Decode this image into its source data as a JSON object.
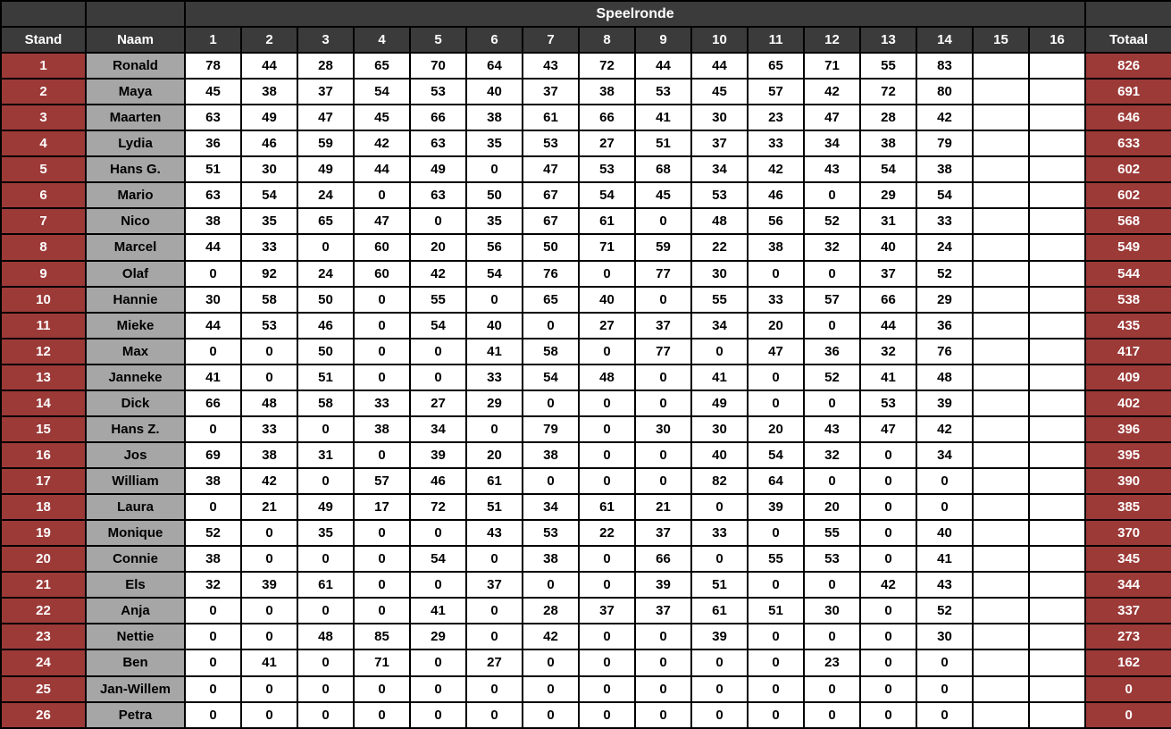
{
  "colors": {
    "header_bg": "#3B3B3B",
    "header_text": "#FFFFFF",
    "rank_bg": "#9C3A38",
    "rank_text": "#FFFFFF",
    "name_bg": "#A6A6A6",
    "name_text": "#000000",
    "cell_bg": "#FFFFFF",
    "cell_text": "#000000",
    "border": "#000000"
  },
  "chart_data": {
    "type": "table",
    "group_header": "Speelronde",
    "col_stand": "Stand",
    "col_naam": "Naam",
    "round_columns": [
      "1",
      "2",
      "3",
      "4",
      "5",
      "6",
      "7",
      "8",
      "9",
      "10",
      "11",
      "12",
      "13",
      "14",
      "15",
      "16"
    ],
    "col_totaal": "Totaal",
    "rows": [
      {
        "stand": "1",
        "naam": "Ronald",
        "scores": [
          78,
          44,
          28,
          65,
          70,
          64,
          43,
          72,
          44,
          44,
          65,
          71,
          55,
          83,
          "",
          ""
        ],
        "totaal": "826"
      },
      {
        "stand": "2",
        "naam": "Maya",
        "scores": [
          45,
          38,
          37,
          54,
          53,
          40,
          37,
          38,
          53,
          45,
          57,
          42,
          72,
          80,
          "",
          ""
        ],
        "totaal": "691"
      },
      {
        "stand": "3",
        "naam": "Maarten",
        "scores": [
          63,
          49,
          47,
          45,
          66,
          38,
          61,
          66,
          41,
          30,
          23,
          47,
          28,
          42,
          "",
          ""
        ],
        "totaal": "646"
      },
      {
        "stand": "4",
        "naam": "Lydia",
        "scores": [
          36,
          46,
          59,
          42,
          63,
          35,
          53,
          27,
          51,
          37,
          33,
          34,
          38,
          79,
          "",
          ""
        ],
        "totaal": "633"
      },
      {
        "stand": "5",
        "naam": "Hans G.",
        "scores": [
          51,
          30,
          49,
          44,
          49,
          0,
          47,
          53,
          68,
          34,
          42,
          43,
          54,
          38,
          "",
          ""
        ],
        "totaal": "602"
      },
      {
        "stand": "6",
        "naam": "Mario",
        "scores": [
          63,
          54,
          24,
          0,
          63,
          50,
          67,
          54,
          45,
          53,
          46,
          0,
          29,
          54,
          "",
          ""
        ],
        "totaal": "602"
      },
      {
        "stand": "7",
        "naam": "Nico",
        "scores": [
          38,
          35,
          65,
          47,
          0,
          35,
          67,
          61,
          0,
          48,
          56,
          52,
          31,
          33,
          "",
          ""
        ],
        "totaal": "568"
      },
      {
        "stand": "8",
        "naam": "Marcel",
        "scores": [
          44,
          33,
          0,
          60,
          20,
          56,
          50,
          71,
          59,
          22,
          38,
          32,
          40,
          24,
          "",
          ""
        ],
        "totaal": "549"
      },
      {
        "stand": "9",
        "naam": "Olaf",
        "scores": [
          0,
          92,
          24,
          60,
          42,
          54,
          76,
          0,
          77,
          30,
          0,
          0,
          37,
          52,
          "",
          ""
        ],
        "totaal": "544"
      },
      {
        "stand": "10",
        "naam": "Hannie",
        "scores": [
          30,
          58,
          50,
          0,
          55,
          0,
          65,
          40,
          0,
          55,
          33,
          57,
          66,
          29,
          "",
          ""
        ],
        "totaal": "538"
      },
      {
        "stand": "11",
        "naam": "Mieke",
        "scores": [
          44,
          53,
          46,
          0,
          54,
          40,
          0,
          27,
          37,
          34,
          20,
          0,
          44,
          36,
          "",
          ""
        ],
        "totaal": "435"
      },
      {
        "stand": "12",
        "naam": "Max",
        "scores": [
          0,
          0,
          50,
          0,
          0,
          41,
          58,
          0,
          77,
          0,
          47,
          36,
          32,
          76,
          "",
          ""
        ],
        "totaal": "417"
      },
      {
        "stand": "13",
        "naam": "Janneke",
        "scores": [
          41,
          0,
          51,
          0,
          0,
          33,
          54,
          48,
          0,
          41,
          0,
          52,
          41,
          48,
          "",
          ""
        ],
        "totaal": "409"
      },
      {
        "stand": "14",
        "naam": "Dick",
        "scores": [
          66,
          48,
          58,
          33,
          27,
          29,
          0,
          0,
          0,
          49,
          0,
          0,
          53,
          39,
          "",
          ""
        ],
        "totaal": "402"
      },
      {
        "stand": "15",
        "naam": "Hans Z.",
        "scores": [
          0,
          33,
          0,
          38,
          34,
          0,
          79,
          0,
          30,
          30,
          20,
          43,
          47,
          42,
          "",
          ""
        ],
        "totaal": "396"
      },
      {
        "stand": "16",
        "naam": "Jos",
        "scores": [
          69,
          38,
          31,
          0,
          39,
          20,
          38,
          0,
          0,
          40,
          54,
          32,
          0,
          34,
          "",
          ""
        ],
        "totaal": "395"
      },
      {
        "stand": "17",
        "naam": "William",
        "scores": [
          38,
          42,
          0,
          57,
          46,
          61,
          0,
          0,
          0,
          82,
          64,
          0,
          0,
          0,
          "",
          ""
        ],
        "totaal": "390"
      },
      {
        "stand": "18",
        "naam": "Laura",
        "scores": [
          0,
          21,
          49,
          17,
          72,
          51,
          34,
          61,
          21,
          0,
          39,
          20,
          0,
          0,
          "",
          ""
        ],
        "totaal": "385"
      },
      {
        "stand": "19",
        "naam": "Monique",
        "scores": [
          52,
          0,
          35,
          0,
          0,
          43,
          53,
          22,
          37,
          33,
          0,
          55,
          0,
          40,
          "",
          ""
        ],
        "totaal": "370"
      },
      {
        "stand": "20",
        "naam": "Connie",
        "scores": [
          38,
          0,
          0,
          0,
          54,
          0,
          38,
          0,
          66,
          0,
          55,
          53,
          0,
          41,
          "",
          ""
        ],
        "totaal": "345"
      },
      {
        "stand": "21",
        "naam": "Els",
        "scores": [
          32,
          39,
          61,
          0,
          0,
          37,
          0,
          0,
          39,
          51,
          0,
          0,
          42,
          43,
          "",
          ""
        ],
        "totaal": "344"
      },
      {
        "stand": "22",
        "naam": "Anja",
        "scores": [
          0,
          0,
          0,
          0,
          41,
          0,
          28,
          37,
          37,
          61,
          51,
          30,
          0,
          52,
          "",
          ""
        ],
        "totaal": "337"
      },
      {
        "stand": "23",
        "naam": "Nettie",
        "scores": [
          0,
          0,
          48,
          85,
          29,
          0,
          42,
          0,
          0,
          39,
          0,
          0,
          0,
          30,
          "",
          ""
        ],
        "totaal": "273"
      },
      {
        "stand": "24",
        "naam": "Ben",
        "scores": [
          0,
          41,
          0,
          71,
          0,
          27,
          0,
          0,
          0,
          0,
          0,
          23,
          0,
          0,
          "",
          ""
        ],
        "totaal": "162"
      },
      {
        "stand": "25",
        "naam": "Jan-Willem",
        "scores": [
          0,
          0,
          0,
          0,
          0,
          0,
          0,
          0,
          0,
          0,
          0,
          0,
          0,
          0,
          "",
          ""
        ],
        "totaal": "0"
      },
      {
        "stand": "26",
        "naam": "Petra",
        "scores": [
          0,
          0,
          0,
          0,
          0,
          0,
          0,
          0,
          0,
          0,
          0,
          0,
          0,
          0,
          "",
          ""
        ],
        "totaal": "0"
      }
    ]
  }
}
